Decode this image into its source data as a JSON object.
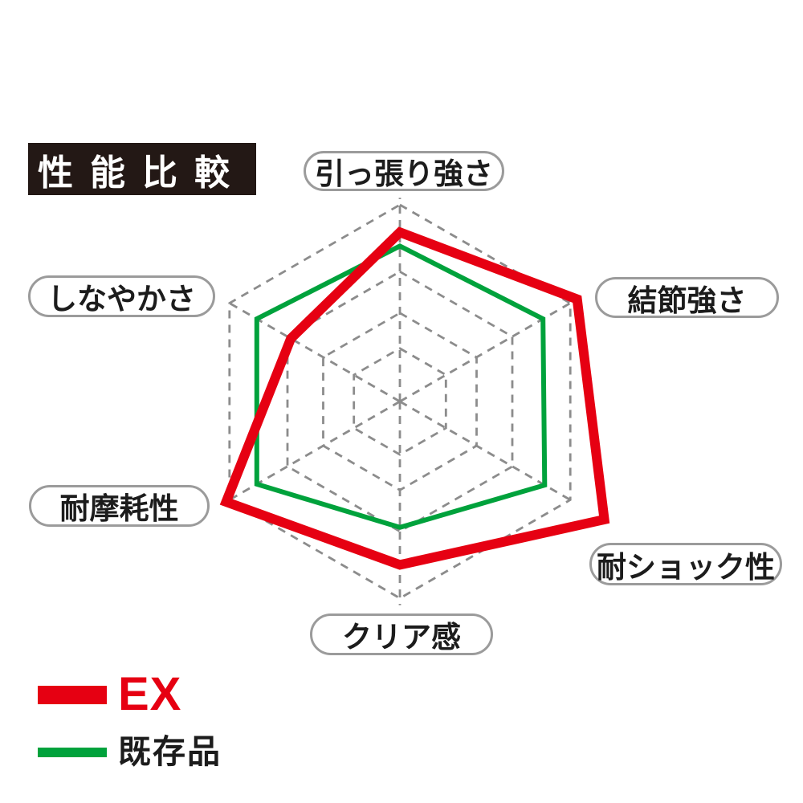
{
  "title": {
    "text": "性能比較"
  },
  "chart_data": {
    "type": "radar",
    "axes": [
      "引っ張り強さ",
      "結節強さ",
      "耐ショック性",
      "クリア感",
      "耐摩耗性",
      "しなやかさ"
    ],
    "scale": {
      "min": 0,
      "max": 1,
      "grid_levels": [
        0.27,
        0.45,
        0.66,
        1.0
      ],
      "grid_style": "dashed",
      "grid_shape": "hexagon"
    },
    "series": [
      {
        "name": "EX",
        "color": "#e60012",
        "stroke_width": 12,
        "values": [
          0.86,
          1.04,
          1.2,
          0.83,
          1.02,
          0.64
        ]
      },
      {
        "name": "既存品",
        "color": "#00a23c",
        "stroke_width": 6,
        "values": [
          0.79,
          0.84,
          0.85,
          0.64,
          0.84,
          0.84
        ]
      }
    ],
    "legend_position": "bottom-left"
  },
  "legend": [
    {
      "label": "EX",
      "swatch_color": "#e60012",
      "label_color": "#e60012"
    },
    {
      "label": "既存品",
      "swatch_color": "#00a23c",
      "label_color": "#1c1c1c"
    }
  ],
  "colors": {
    "grid": "#8c8c8c",
    "label_border": "#9b9b9b",
    "title_bg": "#231815",
    "title_fg": "#ffffff",
    "text": "#1c1c1c",
    "background": "#ffffff"
  }
}
